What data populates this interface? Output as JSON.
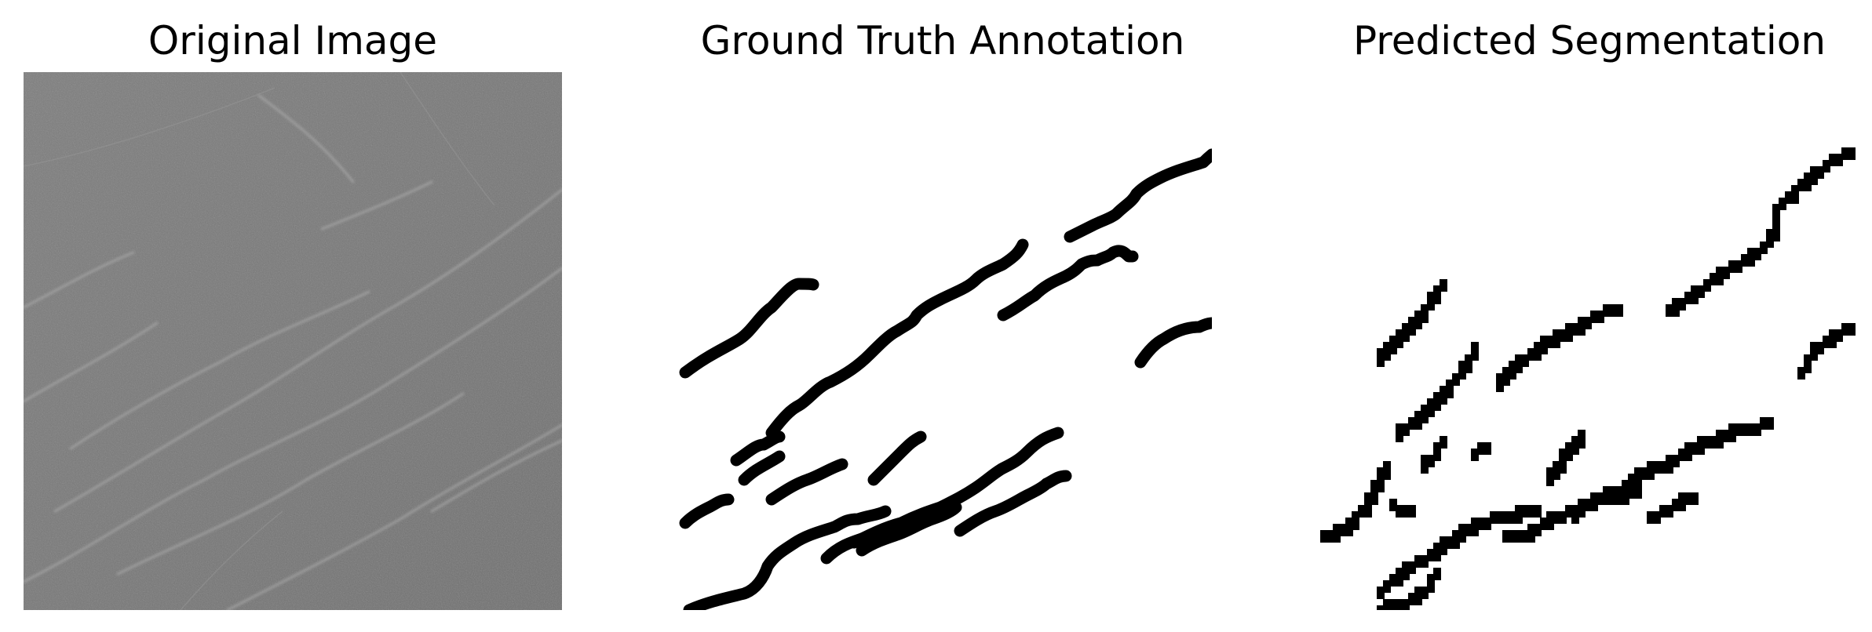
{
  "figure": {
    "panels": [
      {
        "title": "Original Image"
      },
      {
        "title": "Ground Truth Annotation"
      },
      {
        "title": "Predicted Segmentation"
      }
    ]
  }
}
